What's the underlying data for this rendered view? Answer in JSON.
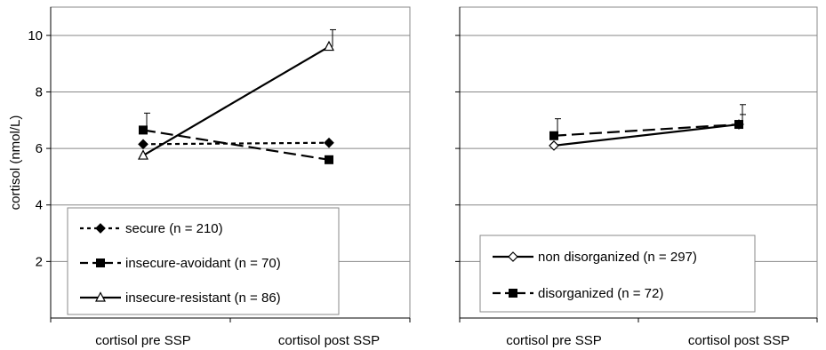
{
  "chart_data": [
    {
      "type": "line",
      "ylabel": "cortisol (nmol/L)",
      "ylim": [
        0,
        11
      ],
      "yticks": [
        2,
        4,
        6,
        8,
        10
      ],
      "grid": true,
      "legend_position": "bottom-left",
      "categories": [
        "cortisol pre SSP",
        "cortisol post SSP"
      ],
      "series": [
        {
          "name": "secure (n = 210)",
          "values": [
            6.15,
            6.2
          ],
          "error": [
            null,
            null
          ],
          "marker": "diamond-filled",
          "line": "dotted",
          "color": "#000000"
        },
        {
          "name": "insecure-avoidant (n = 70)",
          "values": [
            6.65,
            5.6
          ],
          "error": [
            0.6,
            null
          ],
          "marker": "square-filled",
          "line": "dashed",
          "color": "#000000"
        },
        {
          "name": "insecure-resistant (n = 86)",
          "values": [
            5.75,
            9.6
          ],
          "error": [
            null,
            0.6
          ],
          "marker": "triangle-open",
          "line": "solid",
          "color": "#000000"
        }
      ]
    },
    {
      "type": "line",
      "ylim": [
        0,
        11
      ],
      "yticks": [
        2,
        4,
        6,
        8,
        10
      ],
      "grid": true,
      "legend_position": "bottom-left",
      "categories": [
        "cortisol pre SSP",
        "cortisol post SSP"
      ],
      "series": [
        {
          "name": "non disorganized (n = 297)",
          "values": [
            6.1,
            6.85
          ],
          "error": [
            null,
            0.35
          ],
          "marker": "diamond-open",
          "line": "solid",
          "color": "#000000"
        },
        {
          "name": "disorganized (n = 72)",
          "values": [
            6.45,
            6.85
          ],
          "error": [
            0.6,
            0.7
          ],
          "marker": "square-filled",
          "line": "dashed",
          "color": "#000000"
        }
      ]
    }
  ]
}
